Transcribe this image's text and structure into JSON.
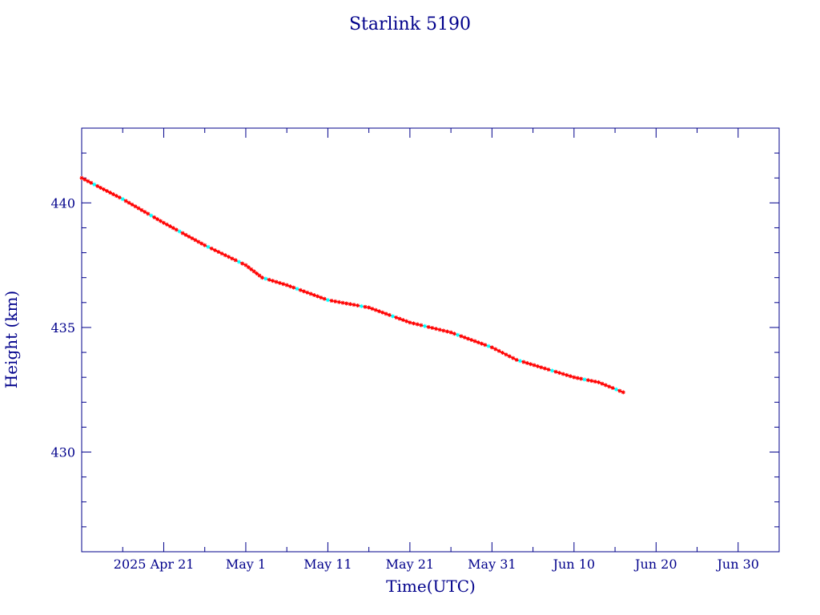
{
  "chart_data": {
    "type": "line",
    "title": "Starlink 5190",
    "xlabel": "Time(UTC)",
    "ylabel": "Height (km)",
    "x_ticks": [
      "2025 Apr 21",
      "May  1",
      "May 11",
      "May 21",
      "May 31",
      "Jun 10",
      "Jun 20",
      "Jun 30"
    ],
    "x_range": [
      "2025-04-11",
      "2025-07-05"
    ],
    "ylim": [
      426,
      443
    ],
    "y_ticks": [
      430,
      435,
      440
    ],
    "grid": false,
    "colors": {
      "axes": "#00008b",
      "line": "#ff0000",
      "marker": "#ff0000",
      "highlight_marker": "#00ffff"
    },
    "series": [
      {
        "marker": "asterisk",
        "x": [
          "2025-04-11",
          "2025-04-16",
          "2025-04-21",
          "2025-04-26",
          "2025-05-01",
          "2025-05-03",
          "2025-05-06",
          "2025-05-11",
          "2025-05-16",
          "2025-05-21",
          "2025-05-26",
          "2025-05-31",
          "2025-06-03",
          "2025-06-06",
          "2025-06-10",
          "2025-06-13",
          "2025-06-16"
        ],
        "y": [
          441.0,
          440.15,
          439.2,
          438.3,
          437.5,
          437.0,
          436.7,
          436.1,
          435.8,
          435.2,
          434.8,
          434.2,
          433.7,
          433.4,
          433.0,
          432.8,
          432.4
        ]
      }
    ]
  }
}
